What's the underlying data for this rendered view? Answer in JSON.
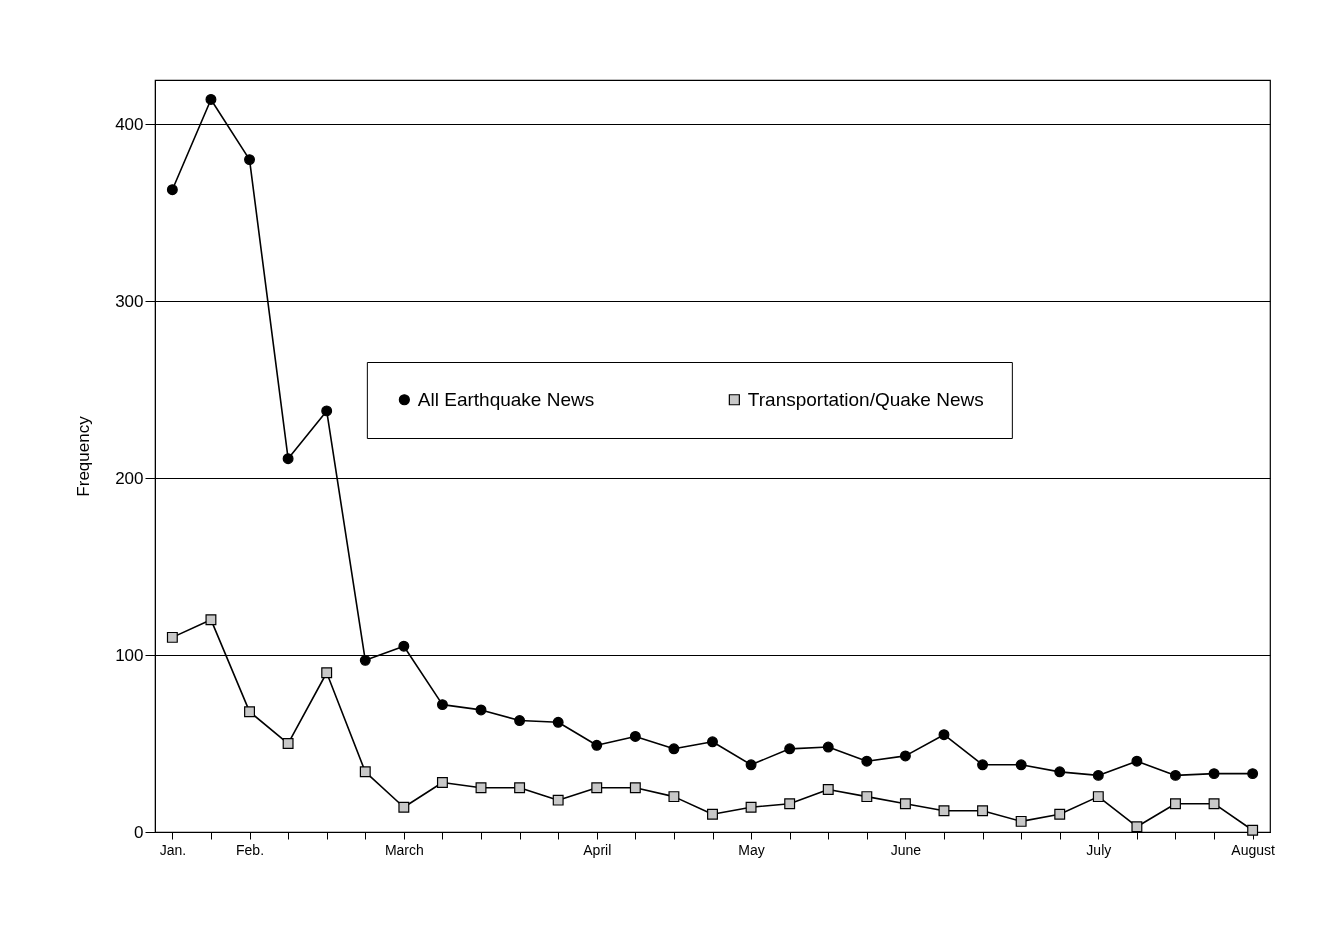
{
  "chart_data": {
    "type": "line",
    "ylabel": "Frequency",
    "categories": [
      "Jan.",
      null,
      "Feb.",
      null,
      null,
      null,
      "March",
      null,
      null,
      null,
      null,
      "April",
      null,
      null,
      null,
      "May",
      null,
      null,
      null,
      "June",
      null,
      null,
      null,
      null,
      "July",
      null,
      null,
      null,
      "August"
    ],
    "series": [
      {
        "name": "All Earthquake News",
        "color": "#000000",
        "marker": "circle",
        "values": [
          363,
          414,
          380,
          211,
          238,
          97,
          105,
          72,
          69,
          63,
          62,
          49,
          54,
          47,
          51,
          38,
          47,
          48,
          40,
          43,
          55,
          38,
          38,
          34,
          32,
          40,
          32,
          33,
          33
        ]
      },
      {
        "name": "Transportation/Quake News",
        "color": "#000000",
        "marker": "square",
        "values": [
          110,
          120,
          68,
          50,
          90,
          34,
          14,
          28,
          25,
          25,
          18,
          25,
          25,
          20,
          10,
          14,
          16,
          24,
          20,
          16,
          12,
          12,
          6,
          10,
          20,
          3,
          16,
          16,
          1
        ]
      }
    ],
    "ylim": [
      0,
      425
    ],
    "yticks": [
      0,
      100,
      200,
      300,
      400
    ],
    "grid": "y",
    "legend": "right",
    "line_style": "solid"
  }
}
